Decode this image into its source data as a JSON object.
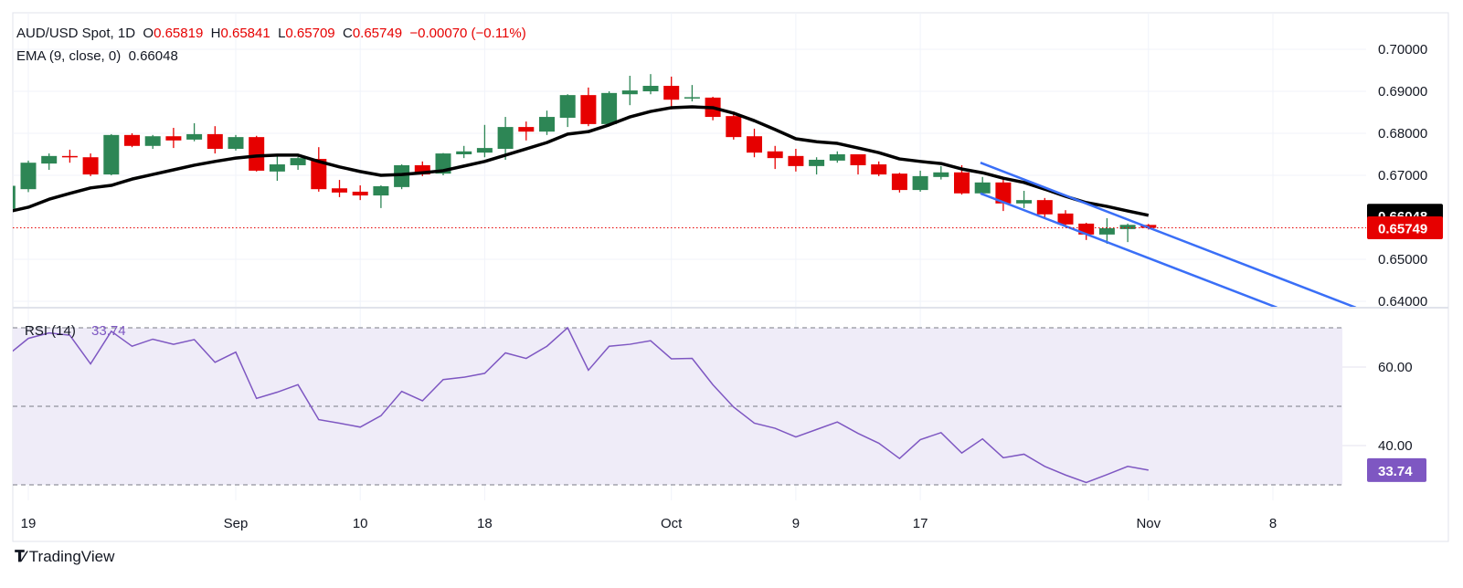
{
  "header": {
    "symbol": "AUD/USD Spot, 1D",
    "o_label": "O",
    "o": "0.65819",
    "h_label": "H",
    "h": "0.65841",
    "l_label": "L",
    "l": "0.65709",
    "c_label": "C",
    "c": "0.65749",
    "change": "−0.00070 (−0.11%)",
    "ema_label": "EMA (9, close, 0)",
    "ema_value": "0.66048"
  },
  "rsi_header": {
    "label": "RSI (14)",
    "value": "33.74"
  },
  "brand": {
    "name": "TradingView"
  },
  "colors": {
    "up": "#2d8655",
    "down": "#e60000",
    "ema": "#000000",
    "channel": "#3a6ff7",
    "rsi": "#7e57c2",
    "rsi_band": "#efecf8"
  },
  "chart_data": [
    {
      "type": "candlestick",
      "title": "AUD/USD Spot, 1D",
      "ylim": [
        0.6385,
        0.706
      ],
      "y_ticks": [
        "0.70000",
        "0.69000",
        "0.68000",
        "0.67000",
        "0.65000",
        "0.64000"
      ],
      "y_tick_values": [
        0.7,
        0.69,
        0.68,
        0.67,
        0.65,
        0.64
      ],
      "x_ticks": [
        {
          "label": "19",
          "bar": 1
        },
        {
          "label": "Sep",
          "bar": 11
        },
        {
          "label": "10",
          "bar": 17
        },
        {
          "label": "18",
          "bar": 23
        },
        {
          "label": "Oct",
          "bar": 32
        },
        {
          "label": "9",
          "bar": 38
        },
        {
          "label": "17",
          "bar": 44
        },
        {
          "label": "Nov",
          "bar": 55
        },
        {
          "label": "8",
          "bar": 61
        }
      ],
      "ohlc": [
        [
          0.662,
          0.668,
          0.6612,
          0.6675
        ],
        [
          0.6667,
          0.6735,
          0.666,
          0.673
        ],
        [
          0.6728,
          0.6752,
          0.6713,
          0.6746
        ],
        [
          0.6746,
          0.6761,
          0.673,
          0.6744
        ],
        [
          0.6743,
          0.6752,
          0.6698,
          0.6702
        ],
        [
          0.6702,
          0.6798,
          0.67,
          0.6796
        ],
        [
          0.6796,
          0.68,
          0.6767,
          0.677
        ],
        [
          0.677,
          0.6796,
          0.6763,
          0.6793
        ],
        [
          0.6793,
          0.6813,
          0.6765,
          0.6783
        ],
        [
          0.6785,
          0.6824,
          0.6781,
          0.6798
        ],
        [
          0.6798,
          0.6817,
          0.6752,
          0.6763
        ],
        [
          0.6763,
          0.6796,
          0.6759,
          0.6791
        ],
        [
          0.6791,
          0.6794,
          0.6709,
          0.6711
        ],
        [
          0.6709,
          0.675,
          0.6687,
          0.6726
        ],
        [
          0.6724,
          0.6744,
          0.6713,
          0.6741
        ],
        [
          0.6739,
          0.6767,
          0.6661,
          0.6667
        ],
        [
          0.6669,
          0.6689,
          0.6648,
          0.6659
        ],
        [
          0.6661,
          0.6676,
          0.6641,
          0.6652
        ],
        [
          0.6652,
          0.6676,
          0.6622,
          0.6674
        ],
        [
          0.6672,
          0.6726,
          0.6667,
          0.6724
        ],
        [
          0.6724,
          0.6733,
          0.6698,
          0.6702
        ],
        [
          0.6704,
          0.6753,
          0.67,
          0.6752
        ],
        [
          0.675,
          0.677,
          0.6741,
          0.6757
        ],
        [
          0.6754,
          0.682,
          0.6743,
          0.6765
        ],
        [
          0.6763,
          0.6839,
          0.6737,
          0.6815
        ],
        [
          0.6815,
          0.6828,
          0.6783,
          0.6804
        ],
        [
          0.6804,
          0.6854,
          0.6796,
          0.6839
        ],
        [
          0.6837,
          0.6893,
          0.6815,
          0.6891
        ],
        [
          0.6891,
          0.6909,
          0.6817,
          0.6822
        ],
        [
          0.6822,
          0.69,
          0.682,
          0.6896
        ],
        [
          0.6893,
          0.6937,
          0.6867,
          0.6902
        ],
        [
          0.69,
          0.6941,
          0.6893,
          0.6913
        ],
        [
          0.6913,
          0.6935,
          0.6857,
          0.688
        ],
        [
          0.6885,
          0.6915,
          0.6876,
          0.6886
        ],
        [
          0.6885,
          0.6887,
          0.6831,
          0.6839
        ],
        [
          0.6841,
          0.6852,
          0.6785,
          0.6791
        ],
        [
          0.6793,
          0.6811,
          0.6743,
          0.6754
        ],
        [
          0.6757,
          0.677,
          0.6715,
          0.6741
        ],
        [
          0.6746,
          0.6763,
          0.6709,
          0.6722
        ],
        [
          0.6722,
          0.6743,
          0.6702,
          0.6737
        ],
        [
          0.6735,
          0.6757,
          0.673,
          0.675
        ],
        [
          0.675,
          0.675,
          0.6702,
          0.6724
        ],
        [
          0.6726,
          0.6733,
          0.6698,
          0.6702
        ],
        [
          0.6704,
          0.6706,
          0.6659,
          0.6665
        ],
        [
          0.6665,
          0.6711,
          0.6661,
          0.6698
        ],
        [
          0.6696,
          0.6722,
          0.669,
          0.6707
        ],
        [
          0.6707,
          0.6724,
          0.6654,
          0.6657
        ],
        [
          0.6657,
          0.6696,
          0.6652,
          0.6683
        ],
        [
          0.6683,
          0.6691,
          0.6615,
          0.6633
        ],
        [
          0.6633,
          0.6663,
          0.6622,
          0.6641
        ],
        [
          0.6641,
          0.6646,
          0.66,
          0.6607
        ],
        [
          0.6609,
          0.6617,
          0.6581,
          0.6583
        ],
        [
          0.6585,
          0.6587,
          0.6546,
          0.6559
        ],
        [
          0.6559,
          0.6598,
          0.6537,
          0.6574
        ],
        [
          0.6572,
          0.6585,
          0.6541,
          0.6582
        ],
        [
          0.65819,
          0.65841,
          0.65709,
          0.65749
        ]
      ],
      "ema9": [
        0.6613,
        0.6624,
        0.6643,
        0.6657,
        0.667,
        0.6676,
        0.6691,
        0.6702,
        0.6713,
        0.6724,
        0.6733,
        0.6741,
        0.6746,
        0.6748,
        0.6748,
        0.6733,
        0.672,
        0.6709,
        0.67,
        0.6702,
        0.6706,
        0.6711,
        0.6722,
        0.6733,
        0.6748,
        0.6763,
        0.6778,
        0.6798,
        0.6804,
        0.682,
        0.6839,
        0.6852,
        0.6861,
        0.6863,
        0.6861,
        0.6848,
        0.683,
        0.6809,
        0.6787,
        0.678,
        0.6776,
        0.6765,
        0.6754,
        0.6739,
        0.6733,
        0.6728,
        0.6715,
        0.6706,
        0.6693,
        0.6683,
        0.6667,
        0.665,
        0.6635,
        0.6626,
        0.6615,
        0.66048
      ],
      "last_close": 0.65749,
      "price_badges": [
        {
          "label": "0.66048",
          "value": 0.66048,
          "series": "ema"
        },
        {
          "label": "0.65749",
          "value": 0.65749,
          "series": "close"
        }
      ],
      "channel": {
        "upper": [
          [
            46.9,
            0.673
          ],
          [
            65.0,
            0.6385
          ]
        ],
        "lower": [
          [
            46.9,
            0.6657
          ],
          [
            61.2,
            0.6385
          ]
        ]
      }
    },
    {
      "type": "line",
      "title": "RSI (14)",
      "ylim": [
        26,
        75
      ],
      "y_ticks": [
        "60.00",
        "40.00"
      ],
      "y_tick_values": [
        60,
        40
      ],
      "levels": [
        70,
        50,
        30
      ],
      "badge": {
        "label": "33.74",
        "value": 33.74
      },
      "values": [
        63.0,
        67.3,
        68.7,
        68.1,
        60.8,
        69.1,
        65.3,
        67.1,
        65.8,
        67.0,
        61.2,
        63.8,
        52.0,
        53.6,
        55.5,
        46.6,
        45.7,
        44.7,
        47.6,
        53.8,
        51.4,
        56.8,
        57.4,
        58.4,
        63.6,
        62.2,
        65.3,
        70.0,
        59.2,
        65.3,
        65.8,
        66.7,
        62.1,
        62.2,
        55.5,
        49.8,
        45.7,
        44.4,
        42.2,
        44.1,
        46.0,
        43.1,
        40.6,
        36.7,
        41.5,
        43.3,
        38.1,
        41.7,
        36.9,
        37.8,
        34.7,
        32.5,
        30.6,
        32.6,
        34.7,
        33.74
      ]
    }
  ]
}
